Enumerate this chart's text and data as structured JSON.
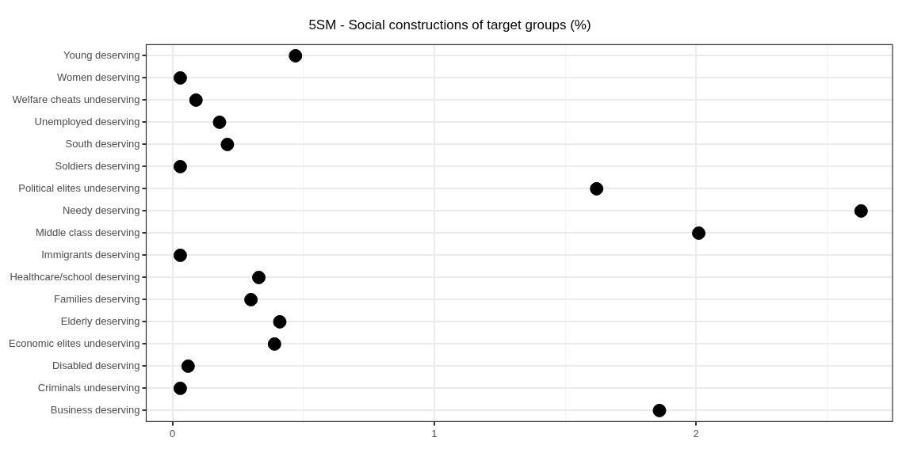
{
  "chart_data": {
    "type": "scatter",
    "title": "5SM - Social constructions of target groups (%)",
    "orientation": "horizontal",
    "categories": [
      "Young deserving",
      "Women deserving",
      "Welfare cheats undeserving",
      "Unemployed deserving",
      "South deserving",
      "Soldiers deserving",
      "Political elites undeserving",
      "Needy deserving",
      "Middle class deserving",
      "Immigrants deserving",
      "Healthcare/school deserving",
      "Families deserving",
      "Elderly deserving",
      "Economic elites undeserving",
      "Disabled deserving",
      "Criminals undeserving",
      "Business deserving"
    ],
    "values": [
      0.47,
      0.03,
      0.09,
      0.18,
      0.21,
      0.03,
      1.62,
      2.63,
      2.01,
      0.03,
      0.33,
      0.3,
      0.41,
      0.39,
      0.06,
      0.03,
      1.86
    ],
    "color": "#000000",
    "marker": "circle",
    "xlim": [
      -0.1,
      2.75
    ],
    "xticks": [
      0,
      {
        "value": 0.5,
        "label": null
      },
      1,
      {
        "value": 1.5,
        "label": null
      },
      2,
      {
        "value": 2.5,
        "label": null
      }
    ],
    "grid": true,
    "legend": false
  }
}
